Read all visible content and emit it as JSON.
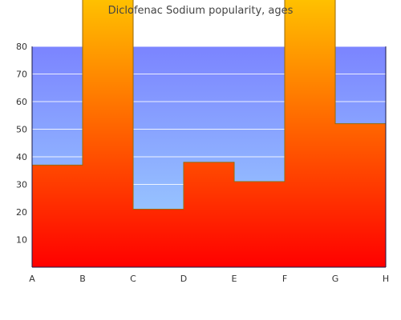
{
  "chart_data": {
    "type": "area",
    "title": "Diclofenac Sodium popularity, ages",
    "xlabel": "",
    "ylabel": "",
    "categories": [
      "A",
      "B",
      "C",
      "D",
      "E",
      "F",
      "G",
      "H"
    ],
    "values": [
      37,
      100,
      21,
      38,
      31,
      100,
      52,
      58
    ],
    "ylim": [
      0,
      80
    ],
    "yticks": [
      10,
      20,
      30,
      40,
      50,
      60,
      70,
      80
    ],
    "grid": true,
    "legend": "none",
    "colors": {
      "background_top": "#7b84ff",
      "background_bottom": "#a0d8ff",
      "fill_top": "#ffc000",
      "fill_bottom": "#ff0000",
      "stroke": "#9a6a00",
      "axis": "#1a1a4a",
      "grid": "#ffffff"
    }
  }
}
